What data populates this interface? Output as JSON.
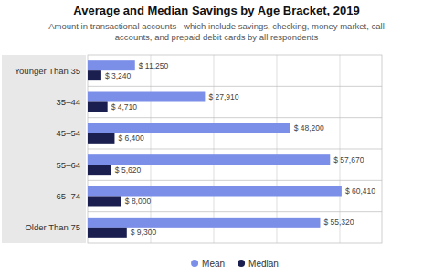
{
  "chart_data": {
    "type": "bar",
    "orientation": "horizontal",
    "title": "Average and Median Savings by Age Bracket, 2019",
    "subtitle": "Amount in transactional accounts –which include savings, checking, money market, call\naccounts, and prepaid debit cards by all respondents",
    "categories": [
      "Younger Than 35",
      "35–44",
      "45–54",
      "55–64",
      "65–74",
      "Older Than 75"
    ],
    "series": [
      {
        "name": "Mean",
        "color": "#7B8EE8",
        "values": [
          11250,
          27910,
          48200,
          57670,
          60410,
          55320
        ],
        "value_labels": [
          "$ 11,250",
          "$ 27,910",
          "$ 48,200",
          "$ 57,670",
          "$ 60,410",
          "$ 55,320"
        ]
      },
      {
        "name": "Median",
        "color": "#1B1F50",
        "values": [
          3240,
          4710,
          6400,
          5620,
          8000,
          9300
        ],
        "value_labels": [
          "$ 3,240",
          "$ 4,710",
          "$ 6,400",
          "$ 5,620",
          "$ 8,000",
          "$ 9,300"
        ]
      }
    ],
    "xlim": [
      0,
      70000
    ],
    "xticks": [
      15000,
      30000,
      45000,
      60000
    ],
    "grid": true,
    "data_labels": true,
    "tick_labels": "y",
    "legend": "bottom"
  }
}
